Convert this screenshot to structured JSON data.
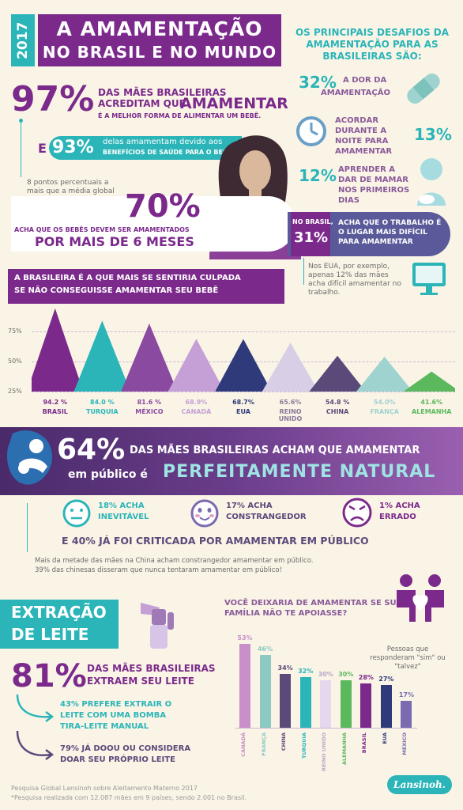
{
  "header": {
    "year": "2017",
    "title_line1": "A AMAMENTAÇÃO",
    "title_line2": "NO BRASIL E NO MUNDO"
  },
  "stat97": {
    "pct": "97%",
    "line1": "DAS MÃES BRASILEIRAS",
    "line2a": "ACREDITAM QUE",
    "line2b": "AMAMENTAR",
    "line3": "É A MELHOR FORMA DE ALIMENTAR UM BEBÊ."
  },
  "stat93": {
    "prefix": "E",
    "pct": "93%",
    "line1": "delas amamentam devido aos",
    "line2": "BENEFÍCIOS DE SAÚDE PARA O BEBÊ"
  },
  "note8": {
    "text": "8 pontos percentuais a mais que a média global (89%)"
  },
  "stat70": {
    "pct": "70%",
    "line1": "ACHA QUE OS BEBÊS DEVEM SER AMAMENTADOS",
    "line2": "POR MAIS DE 6 MESES"
  },
  "challenges": {
    "title": "OS PRINCIPAIS DESAFIOS DA AMAMENTAÇÃO PARA AS BRASILEIRAS SÃO:",
    "item1_pct": "32%",
    "item1_a": "A DOR DA",
    "item1_b": "AMAMENTAÇÃO",
    "item2_text": "ACORDAR DURANTE A NOITE PARA AMAMENTAR",
    "item2_pct": "13%",
    "item3_pct": "12%",
    "item3_text": "APRENDER A DAR DE MAMAR NOS PRIMEIROS DIAS"
  },
  "work": {
    "label": "NO BRASIL,",
    "pct": "31%",
    "text": "ACHA QUE O TRABALHO É O LUGAR MAIS DIFÍCIL PARA AMAMENTAR",
    "note": "Nos EUA, por exemplo, apenas 12% das mães acha difícil amamentar no trabalho."
  },
  "guilt": {
    "title_l1": "A BRASILEIRA É A QUE MAIS SE SENTIRIA CULPADA",
    "title_l2": "SE NÃO CONSEGUISSE AMAMENTAR SEU BEBÊ"
  },
  "chart_data": [
    {
      "type": "area",
      "title": "",
      "ylim": [
        25,
        100
      ],
      "yticks": [
        "75%",
        "50%",
        "25%"
      ],
      "categories": [
        "BRASIL",
        "TURQUIA",
        "MÉXICO",
        "CANADÁ",
        "EUA",
        "REINO UNIDO",
        "CHINA",
        "FRANÇA",
        "ALEMANHA"
      ],
      "values": [
        94.2,
        84.0,
        81.6,
        68.9,
        68.7,
        65.6,
        54.8,
        54.0,
        41.6
      ],
      "value_labels": [
        "94.2 %",
        "84.0 %",
        "81.6 %",
        "68.9%",
        "68.7%",
        "65.6%",
        "54.8 %",
        "54.0%",
        "41.6%"
      ],
      "colors": [
        "#7b2a8c",
        "#2bb5b8",
        "#8a4aa0",
        "#c5a0d6",
        "#2e3a7a",
        "#d8cfe6",
        "#5a4a7a",
        "#9fd3cf",
        "#5cb85c"
      ]
    },
    {
      "type": "bar",
      "title": "VOCÊ DEIXARIA DE AMAMENTAR SE SUA FAMÍLIA NÃO TE APOIASSE?",
      "legend_note": "Pessoas que responderam \"sim\" ou \"talvez\"",
      "categories": [
        "CANADÁ",
        "FRANÇA",
        "CHINA",
        "TURQUIA",
        "REINO UNIDO",
        "ALEMANHA",
        "BRASIL",
        "EUA",
        "MÉXICO"
      ],
      "values": [
        53,
        46,
        34,
        32,
        30,
        30,
        28,
        27,
        17
      ],
      "value_labels": [
        "53%",
        "46%",
        "34%",
        "32%",
        "30%",
        "30%",
        "28%",
        "27%",
        "17%"
      ],
      "colors": [
        "#c88fc9",
        "#8cc9c2",
        "#5a4a7a",
        "#2bb5b8",
        "#e3d8ee",
        "#5cb85c",
        "#7b2a8c",
        "#2e3a7a",
        "#7b6ab0"
      ],
      "ylim": [
        0,
        60
      ]
    }
  ],
  "public": {
    "pct": "64%",
    "line1": "DAS MÃES BRASILEIRAS ACHAM QUE AMAMENTAR",
    "line2a": "em público é",
    "line2b": "PERFEITAMENTE NATURAL"
  },
  "faces": [
    {
      "pct": "18%",
      "a": "ACHA",
      "b": "INEVITÁVEL"
    },
    {
      "pct": "17%",
      "a": "ACHA",
      "b": "CONSTRANGEDOR"
    },
    {
      "pct": "1%",
      "a": "ACHA",
      "b": "ERRADO"
    }
  ],
  "criticized": {
    "text": "E 40% JÁ FOI CRITICADA POR AMAMENTAR EM PÚBLICO"
  },
  "china_note": {
    "l1": "Mais da metade das mães na China acham constrangedor amamentar em público.",
    "l2": "39% das chinesas disseram que nunca tentaram amamentar em público!"
  },
  "extraction": {
    "title_l1": "EXTRAÇÃO",
    "title_l2": "DE LEITE",
    "pct": "81%",
    "line1": "DAS MÃES BRASILEIRAS",
    "line2": "EXTRAEM SEU LEITE",
    "item1": "43% PREFERE EXTRAIR O LEITE COM UMA BOMBA TIRA-LEITE MANUAL",
    "item2": "79% JÁ DOOU OU CONSIDERA DOAR SEU PRÓPRIO LEITE"
  },
  "footer": {
    "l1": "Pesquisa Global Lansinoh sobre Aleitamento Materno 2017",
    "l2": "*Pesquisa realizada com 12.087 mães em 9 países, sendo 2.001 no Brasil.",
    "brand": "Lansinoh."
  }
}
